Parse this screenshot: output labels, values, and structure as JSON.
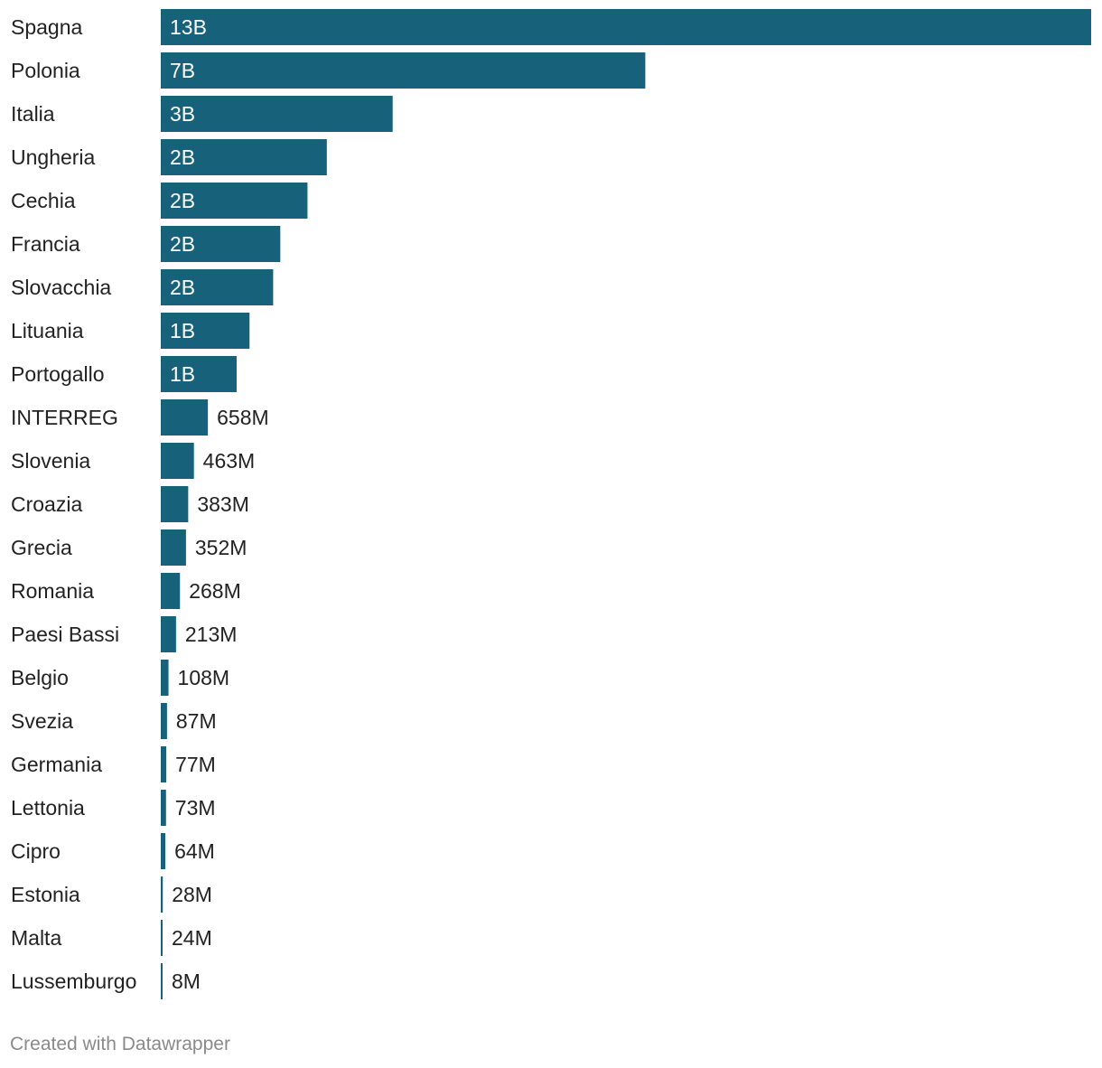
{
  "colors": {
    "bar": "#17627a",
    "label_inside": "#ffffff",
    "label_outside": "#222222"
  },
  "chart_data": {
    "type": "bar",
    "orientation": "horizontal",
    "title": "",
    "xlabel": "",
    "ylabel": "",
    "categories": [
      "Spagna",
      "Polonia",
      "Italia",
      "Ungheria",
      "Cechia",
      "Francia",
      "Slovacchia",
      "Lituania",
      "Portogallo",
      "INTERREG",
      "Slovenia",
      "Croazia",
      "Grecia",
      "Romania",
      "Paesi Bassi",
      "Belgio",
      "Svezia",
      "Germania",
      "Lettonia",
      "Cipro",
      "Estonia",
      "Malta",
      "Lussemburgo"
    ],
    "values": [
      13000000000,
      6770000000,
      3240000000,
      2320000000,
      2050000000,
      1670000000,
      1570000000,
      1240000000,
      1060000000,
      658000000,
      463000000,
      383000000,
      352000000,
      268000000,
      213000000,
      108000000,
      87000000,
      77000000,
      73000000,
      64000000,
      28000000,
      24000000,
      8000000
    ],
    "value_labels": [
      "13B",
      "7B",
      "3B",
      "2B",
      "2B",
      "2B",
      "2B",
      "1B",
      "1B",
      "658M",
      "463M",
      "383M",
      "352M",
      "268M",
      "213M",
      "108M",
      "87M",
      "77M",
      "73M",
      "64M",
      "28M",
      "24M",
      "8M"
    ],
    "xlim": [
      0,
      13000000000
    ]
  },
  "footer": {
    "credit": "Created with Datawrapper"
  }
}
